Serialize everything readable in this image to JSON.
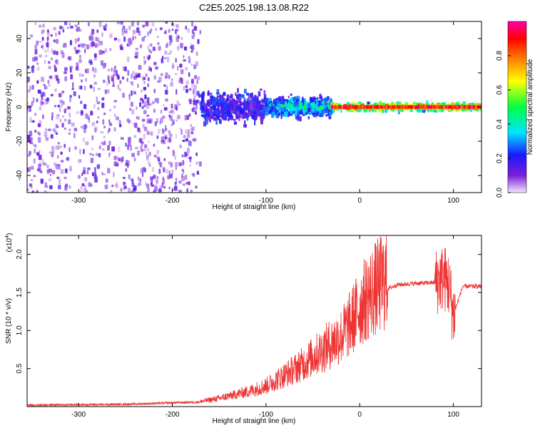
{
  "title": "C2E5.2025.198.13.08.R22",
  "chart_data": [
    {
      "type": "heatmap",
      "xlabel": "Height of straight line (km)",
      "ylabel": "Frequency (Hz)",
      "xlim": [
        -355,
        130
      ],
      "ylim": [
        -50,
        50
      ],
      "xticks": [
        -300,
        -200,
        -100,
        0,
        100
      ],
      "yticks": [
        -40,
        -20,
        0,
        20,
        40
      ],
      "colorbar": {
        "label": "Normalized spectral amplitude",
        "range": [
          0,
          1
        ],
        "ticks": [
          0.0,
          0.2,
          0.4,
          0.6,
          0.8
        ],
        "colors": [
          "#f2e6ff",
          "#7a1fd6",
          "#1a1aff",
          "#00e5ff",
          "#00ff40",
          "#ffff00",
          "#ff8000",
          "#ff0000",
          "#ff00aa"
        ]
      },
      "regions": [
        {
          "x": [
            -355,
            -170
          ],
          "freq_spread": 50,
          "amplitude": [
            0.05,
            0.2
          ]
        },
        {
          "x": [
            -170,
            -100
          ],
          "freq_spread": 12,
          "amplitude": [
            0.1,
            0.3
          ]
        },
        {
          "x": [
            -100,
            -30
          ],
          "freq_spread": 8,
          "amplitude": [
            0.25,
            0.55
          ]
        },
        {
          "x": [
            -30,
            130
          ],
          "freq_spread": 3,
          "amplitude": [
            0.5,
            0.95
          ]
        }
      ]
    },
    {
      "type": "line",
      "xlabel": "Height of straight line (km)",
      "ylabel": "SNR (10 * v/v)",
      "scale_label": "(x10",
      "scale_exp": "4",
      "xlim": [
        -355,
        130
      ],
      "ylim": [
        0,
        22500
      ],
      "xticks": [
        -300,
        -200,
        -100,
        0,
        100
      ],
      "yticks": [
        5000,
        10000,
        15000,
        20000
      ],
      "ytick_labels": [
        "0.5",
        "1.0",
        "1.5",
        "2.0"
      ],
      "line_color": "#ee3333",
      "series": [
        {
          "x": [
            -355,
            -300,
            -250,
            -200,
            -170,
            -150,
            -120,
            -100,
            -80,
            -60,
            -40,
            -20,
            -10,
            0,
            10,
            20,
            30,
            40,
            60,
            80,
            90,
            95,
            100,
            110,
            130
          ],
          "y": [
            200,
            250,
            300,
            500,
            600,
            1000,
            1800,
            2500,
            3800,
            5200,
            6800,
            8500,
            10000,
            12000,
            13500,
            14500,
            15500,
            16000,
            16200,
            16300,
            17000,
            16000,
            12000,
            15800,
            15800
          ]
        }
      ]
    }
  ]
}
